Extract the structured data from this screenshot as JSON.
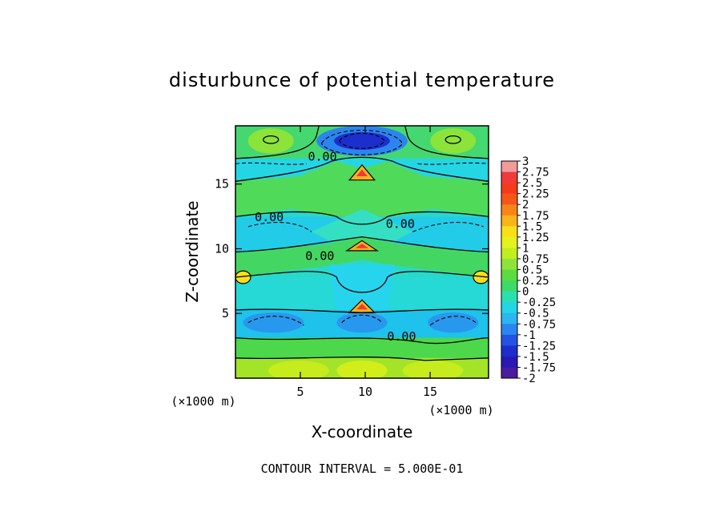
{
  "chart_data": {
    "type": "heatmap",
    "title": "disturbunce of potential temperature",
    "xlabel": "X-coordinate",
    "ylabel": "Z-coordinate",
    "x_unit": "(×1000 m)",
    "z_unit": "(×1000 m)",
    "xlim": [
      0,
      19.5
    ],
    "zlim": [
      0,
      19.5
    ],
    "x_ticks": [
      "5",
      "10",
      "15"
    ],
    "z_ticks": [
      "5",
      "10",
      "15"
    ],
    "x_tick_values": [
      5,
      10,
      15
    ],
    "z_tick_values": [
      5,
      10,
      15
    ],
    "contour_interval_text": "CONTOUR INTERVAL = 5.000E-01",
    "contour_labels": [
      {
        "text": "0.00",
        "x": 6.7,
        "z": 17.1
      },
      {
        "text": "0.00",
        "x": 2.6,
        "z": 12.4
      },
      {
        "text": "0.00",
        "x": 12.7,
        "z": 11.9
      },
      {
        "text": "0.00",
        "x": 6.5,
        "z": 9.4
      },
      {
        "text": "0.00",
        "x": 12.8,
        "z": 3.2
      }
    ],
    "colorbar": {
      "levels": [
        "3",
        "2.75",
        "2.5",
        "2.25",
        "2",
        "1.75",
        "1.5",
        "1.25",
        "1",
        "0.75",
        "0.5",
        "0.25",
        "0",
        "-0.25",
        "-0.5",
        "-0.75",
        "-1",
        "-1.25",
        "-1.5",
        "-1.75",
        "-2"
      ],
      "colors": [
        "#f39a9a",
        "#ee3a3a",
        "#f43a1a",
        "#f7561a",
        "#f88418",
        "#f8b418",
        "#f8e018",
        "#e4f21e",
        "#c0ee1e",
        "#8ce43a",
        "#5cdc3e",
        "#3cda66",
        "#2ae0b0",
        "#22d6e6",
        "#2ab6f0",
        "#2a86ee",
        "#2452e4",
        "#1c2ecc",
        "#2818b4",
        "#4a1ca0"
      ]
    }
  }
}
